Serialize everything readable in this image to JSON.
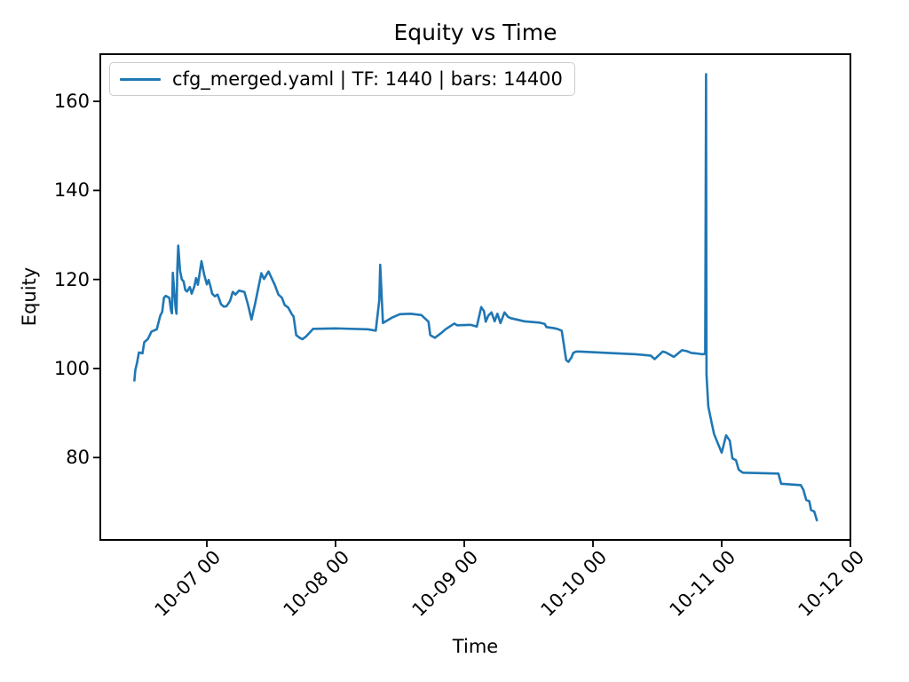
{
  "figure": {
    "background": "#ffffff",
    "text_color": "#000000",
    "accent_line_color": "#1f77b4"
  },
  "chart_data": {
    "type": "line",
    "title": "Equity vs Time",
    "xlabel": "Time",
    "ylabel": "Equity",
    "grid": false,
    "legend_position": "upper left",
    "legend": [
      {
        "label": "cfg_merged.yaml | TF: 1440 | bars: 14400",
        "color": "#1f77b4"
      }
    ],
    "x_tick_labels": [
      "10-07 00",
      "10-08 00",
      "10-09 00",
      "10-10 00",
      "10-11 00",
      "10-12 00"
    ],
    "x_tick_days": [
      1,
      2,
      3,
      4,
      5,
      6
    ],
    "y_ticks": [
      80,
      100,
      120,
      140,
      160
    ],
    "xlim_days": [
      0.1724,
      6.0
    ],
    "ylim": [
      61.5,
      170.6
    ],
    "series": [
      {
        "name": "cfg_merged.yaml | TF: 1440 | bars: 14400",
        "color": "#1f77b4",
        "points": [
          [
            "10-06 10:30",
            97.3
          ],
          [
            "10-06 10:40",
            99.6
          ],
          [
            "10-06 11:00",
            101.4
          ],
          [
            "10-06 11:20",
            103.6
          ],
          [
            "10-06 12:00",
            103.4
          ],
          [
            "10-06 12:20",
            105.9
          ],
          [
            "10-06 13:00",
            106.6
          ],
          [
            "10-06 13:40",
            108.3
          ],
          [
            "10-06 14:40",
            108.8
          ],
          [
            "10-06 15:20",
            111.9
          ],
          [
            "10-06 15:40",
            112.7
          ],
          [
            "10-06 16:00",
            115.9
          ],
          [
            "10-06 16:20",
            116.3
          ],
          [
            "10-06 17:00",
            115.9
          ],
          [
            "10-06 17:20",
            113.0
          ],
          [
            "10-06 17:30",
            112.4
          ],
          [
            "10-06 17:40",
            121.5
          ],
          [
            "10-06 18:00",
            116.0
          ],
          [
            "10-06 18:10",
            113.7
          ],
          [
            "10-06 18:20",
            112.3
          ],
          [
            "10-06 18:30",
            122.7
          ],
          [
            "10-06 18:40",
            127.6
          ],
          [
            "10-06 19:00",
            122.0
          ],
          [
            "10-06 19:20",
            120.0
          ],
          [
            "10-06 19:40",
            119.6
          ],
          [
            "10-06 20:00",
            117.6
          ],
          [
            "10-06 20:20",
            117.3
          ],
          [
            "10-06 20:50",
            118.3
          ],
          [
            "10-06 21:10",
            116.8
          ],
          [
            "10-06 21:40",
            118.4
          ],
          [
            "10-06 22:00",
            120.3
          ],
          [
            "10-06 22:20",
            118.8
          ],
          [
            "10-06 23:00",
            124.1
          ],
          [
            "10-06 23:30",
            121.1
          ],
          [
            "10-07 00:00",
            118.9
          ],
          [
            "10-07 00:20",
            119.9
          ],
          [
            "10-07 00:40",
            118.5
          ],
          [
            "10-07 01:00",
            116.8
          ],
          [
            "10-07 01:30",
            116.2
          ],
          [
            "10-07 02:00",
            116.6
          ],
          [
            "10-07 02:40",
            114.4
          ],
          [
            "10-07 03:10",
            113.9
          ],
          [
            "10-07 03:40",
            114.0
          ],
          [
            "10-07 04:20",
            115.2
          ],
          [
            "10-07 04:50",
            117.2
          ],
          [
            "10-07 05:20",
            116.6
          ],
          [
            "10-07 06:00",
            117.5
          ],
          [
            "10-07 07:00",
            117.2
          ],
          [
            "10-07 07:40",
            114.4
          ],
          [
            "10-07 08:20",
            111.0
          ],
          [
            "10-07 09:00",
            114.6
          ],
          [
            "10-07 10:10",
            121.4
          ],
          [
            "10-07 10:40",
            120.1
          ],
          [
            "10-07 11:30",
            121.8
          ],
          [
            "10-07 12:40",
            118.8
          ],
          [
            "10-07 13:20",
            116.6
          ],
          [
            "10-07 14:00",
            115.9
          ],
          [
            "10-07 14:30",
            114.3
          ],
          [
            "10-07 15:10",
            113.7
          ],
          [
            "10-07 15:50",
            112.2
          ],
          [
            "10-07 16:10",
            111.7
          ],
          [
            "10-07 16:40",
            107.5
          ],
          [
            "10-07 17:20",
            106.9
          ],
          [
            "10-07 17:50",
            106.6
          ],
          [
            "10-07 18:30",
            107.2
          ],
          [
            "10-07 19:50",
            108.9
          ],
          [
            "10-08 00:00",
            109.0
          ],
          [
            "10-08 06:00",
            108.8
          ],
          [
            "10-08 07:30",
            108.5
          ],
          [
            "10-08 08:10",
            115.4
          ],
          [
            "10-08 08:20",
            123.3
          ],
          [
            "10-08 08:50",
            110.2
          ],
          [
            "10-08 09:40",
            110.8
          ],
          [
            "10-08 10:40",
            111.5
          ],
          [
            "10-08 12:00",
            112.2
          ],
          [
            "10-08 14:00",
            112.3
          ],
          [
            "10-08 16:00",
            112.0
          ],
          [
            "10-08 17:20",
            110.5
          ],
          [
            "10-08 17:40",
            107.5
          ],
          [
            "10-08 18:30",
            106.9
          ],
          [
            "10-08 19:50",
            108.1
          ],
          [
            "10-08 20:30",
            108.8
          ],
          [
            "10-08 22:10",
            110.1
          ],
          [
            "10-08 22:40",
            109.7
          ],
          [
            "10-09 01:10",
            109.8
          ],
          [
            "10-09 02:20",
            109.4
          ],
          [
            "10-09 03:10",
            113.8
          ],
          [
            "10-09 03:40",
            112.9
          ],
          [
            "10-09 04:00",
            110.5
          ],
          [
            "10-09 04:30",
            111.9
          ],
          [
            "10-09 05:05",
            112.6
          ],
          [
            "10-09 05:40",
            110.6
          ],
          [
            "10-09 06:10",
            112.3
          ],
          [
            "10-09 06:45",
            110.2
          ],
          [
            "10-09 07:30",
            112.6
          ],
          [
            "10-09 08:10",
            111.6
          ],
          [
            "10-09 08:40",
            111.3
          ],
          [
            "10-09 11:10",
            110.6
          ],
          [
            "10-09 14:00",
            110.3
          ],
          [
            "10-09 15:00",
            110.0
          ],
          [
            "10-09 15:20",
            109.3
          ],
          [
            "10-09 16:30",
            109.1
          ],
          [
            "10-09 17:20",
            108.9
          ],
          [
            "10-09 18:10",
            108.5
          ],
          [
            "10-09 19:00",
            101.9
          ],
          [
            "10-09 19:25",
            101.5
          ],
          [
            "10-09 20:00",
            102.5
          ],
          [
            "10-09 20:20",
            103.5
          ],
          [
            "10-09 20:50",
            103.8
          ],
          [
            "10-09 21:40",
            103.8
          ],
          [
            "10-10 08:00",
            103.2
          ],
          [
            "10-10 10:45",
            102.9
          ],
          [
            "10-10 11:30",
            102.1
          ],
          [
            "10-10 13:00",
            103.8
          ],
          [
            "10-10 13:35",
            103.6
          ],
          [
            "10-10 15:05",
            102.6
          ],
          [
            "10-10 16:35",
            104.1
          ],
          [
            "10-10 17:30",
            103.9
          ],
          [
            "10-10 18:20",
            103.5
          ],
          [
            "10-10 19:10",
            103.4
          ],
          [
            "10-10 20:20",
            103.2
          ],
          [
            "10-10 20:55",
            103.3
          ],
          [
            "10-10 21:05",
            166.1
          ],
          [
            "10-10 21:10",
            98.6
          ],
          [
            "10-10 21:30",
            91.5
          ],
          [
            "10-10 22:10",
            87.6
          ],
          [
            "10-10 22:35",
            85.3
          ],
          [
            "10-10 23:10",
            83.5
          ],
          [
            "10-11 00:00",
            81.1
          ],
          [
            "10-11 00:50",
            85.0
          ],
          [
            "10-11 01:30",
            83.8
          ],
          [
            "10-11 02:00",
            79.8
          ],
          [
            "10-11 02:40",
            79.4
          ],
          [
            "10-11 03:10",
            77.3
          ],
          [
            "10-11 03:40",
            76.8
          ],
          [
            "10-11 04:00",
            76.6
          ],
          [
            "10-11 10:35",
            76.4
          ],
          [
            "10-11 11:05",
            74.1
          ],
          [
            "10-11 14:45",
            73.8
          ],
          [
            "10-11 15:15",
            72.7
          ],
          [
            "10-11 15:45",
            70.5
          ],
          [
            "10-11 16:20",
            70.2
          ],
          [
            "10-11 16:40",
            68.2
          ],
          [
            "10-11 17:15",
            67.9
          ],
          [
            "10-11 17:45",
            65.9
          ]
        ]
      }
    ]
  }
}
